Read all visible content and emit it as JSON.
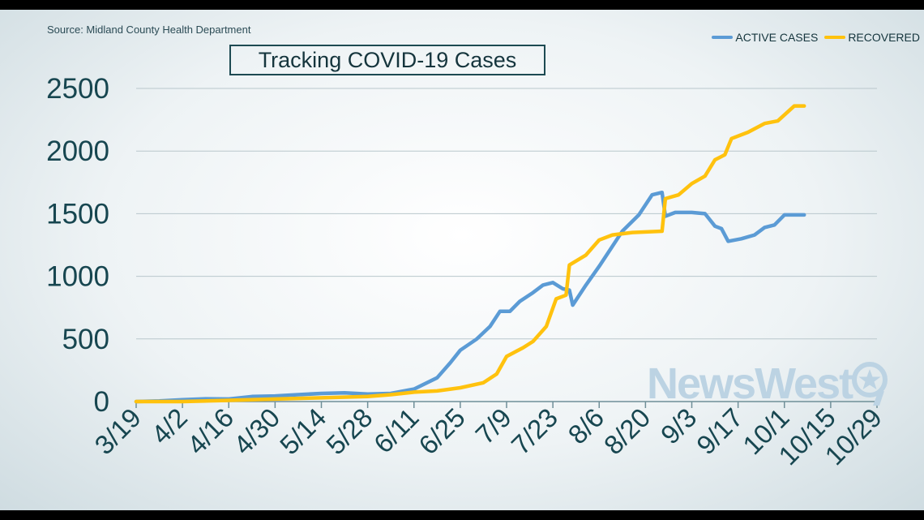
{
  "source_text": "Source: Midland County Health Department",
  "logo_text": "NewsWest",
  "chart_data": {
    "type": "line",
    "title": "Tracking COVID-19 Cases",
    "xlabel": "",
    "ylabel": "",
    "ylim": [
      0,
      2500
    ],
    "yticks": [
      0,
      500,
      1000,
      1500,
      2000,
      2500
    ],
    "xlim": [
      "2020-03-19",
      "2020-10-29"
    ],
    "xtick_labels": [
      "3/19",
      "4/2",
      "4/16",
      "4/30",
      "5/14",
      "5/28",
      "6/11",
      "6/25",
      "7/9",
      "7/23",
      "8/6",
      "8/20",
      "9/3",
      "9/17",
      "10/1",
      "10/15",
      "10/29"
    ],
    "grid": true,
    "legend_position": "top-right",
    "series": [
      {
        "name": "ACTIVE CASES",
        "color": "#5b9bd5",
        "points": [
          [
            "2020-03-19",
            0
          ],
          [
            "2020-03-26",
            5
          ],
          [
            "2020-04-02",
            15
          ],
          [
            "2020-04-09",
            22
          ],
          [
            "2020-04-16",
            20
          ],
          [
            "2020-04-23",
            40
          ],
          [
            "2020-04-30",
            45
          ],
          [
            "2020-05-07",
            55
          ],
          [
            "2020-05-14",
            65
          ],
          [
            "2020-05-21",
            70
          ],
          [
            "2020-05-28",
            60
          ],
          [
            "2020-06-04",
            65
          ],
          [
            "2020-06-11",
            100
          ],
          [
            "2020-06-18",
            190
          ],
          [
            "2020-06-22",
            310
          ],
          [
            "2020-06-25",
            410
          ],
          [
            "2020-06-30",
            500
          ],
          [
            "2020-07-04",
            600
          ],
          [
            "2020-07-07",
            720
          ],
          [
            "2020-07-10",
            720
          ],
          [
            "2020-07-13",
            800
          ],
          [
            "2020-07-17",
            870
          ],
          [
            "2020-07-20",
            930
          ],
          [
            "2020-07-23",
            950
          ],
          [
            "2020-07-26",
            900
          ],
          [
            "2020-07-28",
            890
          ],
          [
            "2020-07-29",
            770
          ],
          [
            "2020-08-02",
            930
          ],
          [
            "2020-08-06",
            1080
          ],
          [
            "2020-08-09",
            1200
          ],
          [
            "2020-08-13",
            1360
          ],
          [
            "2020-08-18",
            1490
          ],
          [
            "2020-08-22",
            1650
          ],
          [
            "2020-08-25",
            1670
          ],
          [
            "2020-08-26",
            1480
          ],
          [
            "2020-08-29",
            1510
          ],
          [
            "2020-09-03",
            1510
          ],
          [
            "2020-09-07",
            1500
          ],
          [
            "2020-09-10",
            1400
          ],
          [
            "2020-09-12",
            1380
          ],
          [
            "2020-09-14",
            1280
          ],
          [
            "2020-09-18",
            1300
          ],
          [
            "2020-09-22",
            1330
          ],
          [
            "2020-09-25",
            1390
          ],
          [
            "2020-09-28",
            1410
          ],
          [
            "2020-10-01",
            1490
          ],
          [
            "2020-10-04",
            1490
          ],
          [
            "2020-10-07",
            1490
          ]
        ]
      },
      {
        "name": "RECOVERED",
        "color": "#ffc20e",
        "points": [
          [
            "2020-03-19",
            0
          ],
          [
            "2020-04-02",
            0
          ],
          [
            "2020-04-16",
            10
          ],
          [
            "2020-04-30",
            20
          ],
          [
            "2020-05-14",
            30
          ],
          [
            "2020-05-28",
            40
          ],
          [
            "2020-06-04",
            55
          ],
          [
            "2020-06-11",
            75
          ],
          [
            "2020-06-18",
            85
          ],
          [
            "2020-06-25",
            110
          ],
          [
            "2020-07-02",
            150
          ],
          [
            "2020-07-06",
            220
          ],
          [
            "2020-07-09",
            360
          ],
          [
            "2020-07-14",
            430
          ],
          [
            "2020-07-17",
            480
          ],
          [
            "2020-07-21",
            600
          ],
          [
            "2020-07-24",
            820
          ],
          [
            "2020-07-27",
            850
          ],
          [
            "2020-07-28",
            1090
          ],
          [
            "2020-08-02",
            1170
          ],
          [
            "2020-08-06",
            1290
          ],
          [
            "2020-08-10",
            1330
          ],
          [
            "2020-08-16",
            1350
          ],
          [
            "2020-08-25",
            1360
          ],
          [
            "2020-08-26",
            1620
          ],
          [
            "2020-08-30",
            1650
          ],
          [
            "2020-09-03",
            1740
          ],
          [
            "2020-09-07",
            1800
          ],
          [
            "2020-09-10",
            1930
          ],
          [
            "2020-09-13",
            1970
          ],
          [
            "2020-09-15",
            2100
          ],
          [
            "2020-09-20",
            2150
          ],
          [
            "2020-09-25",
            2220
          ],
          [
            "2020-09-29",
            2240
          ],
          [
            "2020-10-04",
            2360
          ],
          [
            "2020-10-07",
            2360
          ]
        ]
      }
    ]
  }
}
